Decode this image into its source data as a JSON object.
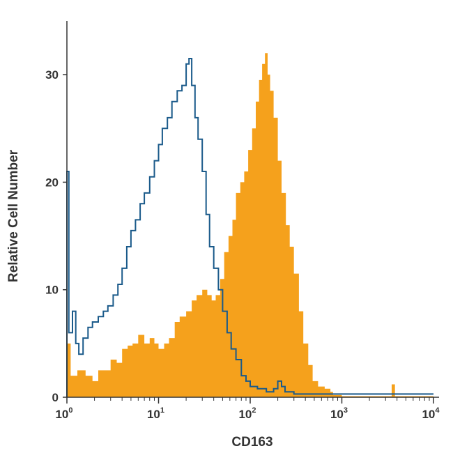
{
  "chart_data": {
    "type": "area",
    "xlabel": "CD163",
    "ylabel": "Relative Cell Number",
    "x_scale": "log",
    "xlim": [
      1,
      10000
    ],
    "ylim": [
      0,
      35
    ],
    "y_ticks": [
      0,
      10,
      20,
      30
    ],
    "x_ticks": [
      {
        "base": "10",
        "exp": "0",
        "value": 1
      },
      {
        "base": "10",
        "exp": "1",
        "value": 10
      },
      {
        "base": "10",
        "exp": "2",
        "value": 100
      },
      {
        "base": "10",
        "exp": "3",
        "value": 1000
      },
      {
        "base": "10",
        "exp": "4",
        "value": 10000
      }
    ],
    "grid": false,
    "legend": "none",
    "series": [
      {
        "style": "filled",
        "color": "#f5a11c",
        "points": [
          [
            1.0,
            5
          ],
          [
            1.1,
            2
          ],
          [
            1.3,
            2.5
          ],
          [
            1.6,
            2
          ],
          [
            1.9,
            1.5
          ],
          [
            2.2,
            2.5
          ],
          [
            2.6,
            2.5
          ],
          [
            3.0,
            3.5
          ],
          [
            3.5,
            3.2
          ],
          [
            4.0,
            4.5
          ],
          [
            4.6,
            4.8
          ],
          [
            5.2,
            5
          ],
          [
            6.0,
            5.8
          ],
          [
            7.0,
            5
          ],
          [
            8.0,
            5.5
          ],
          [
            9.0,
            5
          ],
          [
            10.0,
            4.5
          ],
          [
            11.5,
            5
          ],
          [
            13.0,
            5.5
          ],
          [
            15.0,
            7
          ],
          [
            17.0,
            7.5
          ],
          [
            20.0,
            8
          ],
          [
            23.0,
            9
          ],
          [
            26.0,
            9.5
          ],
          [
            30.0,
            10
          ],
          [
            34.0,
            9.5
          ],
          [
            38.0,
            9
          ],
          [
            42.0,
            9.5
          ],
          [
            47.0,
            11
          ],
          [
            52.0,
            13.5
          ],
          [
            58.0,
            15
          ],
          [
            64.0,
            16.5
          ],
          [
            70.0,
            19
          ],
          [
            78.0,
            20
          ],
          [
            86.0,
            21
          ],
          [
            95.0,
            23
          ],
          [
            105.0,
            25
          ],
          [
            115.0,
            27.5
          ],
          [
            125.0,
            29.5
          ],
          [
            135.0,
            31
          ],
          [
            145.0,
            32
          ],
          [
            155.0,
            30
          ],
          [
            165.0,
            28.5
          ],
          [
            180.0,
            26
          ],
          [
            200.0,
            22
          ],
          [
            220.0,
            19
          ],
          [
            245.0,
            16
          ],
          [
            270.0,
            14
          ],
          [
            300.0,
            11.5
          ],
          [
            340.0,
            8
          ],
          [
            380.0,
            5
          ],
          [
            430.0,
            3
          ],
          [
            480.0,
            1.5
          ],
          [
            550.0,
            1
          ],
          [
            650.0,
            0.8
          ],
          [
            750.0,
            0.5
          ],
          [
            800.0,
            0.2
          ],
          [
            1000.0,
            0.1
          ],
          [
            3200.0,
            0.1
          ],
          [
            3500.0,
            1.2
          ],
          [
            3800.0,
            0.1
          ],
          [
            10000.0,
            0.1
          ]
        ]
      },
      {
        "style": "outline",
        "color": "#1a5a8a",
        "points": [
          [
            1.0,
            21
          ],
          [
            1.05,
            6
          ],
          [
            1.15,
            8
          ],
          [
            1.25,
            5
          ],
          [
            1.35,
            4
          ],
          [
            1.5,
            5.5
          ],
          [
            1.7,
            6.5
          ],
          [
            1.9,
            7
          ],
          [
            2.2,
            7.5
          ],
          [
            2.5,
            8
          ],
          [
            2.8,
            8.5
          ],
          [
            3.2,
            9.5
          ],
          [
            3.6,
            10.5
          ],
          [
            4.0,
            12
          ],
          [
            4.5,
            14
          ],
          [
            5.0,
            15.5
          ],
          [
            5.6,
            16.5
          ],
          [
            6.3,
            18
          ],
          [
            7.0,
            19
          ],
          [
            8.0,
            20.5
          ],
          [
            9.0,
            22
          ],
          [
            10.0,
            23.5
          ],
          [
            11.0,
            25
          ],
          [
            12.5,
            26
          ],
          [
            14.0,
            27.5
          ],
          [
            16.0,
            28.5
          ],
          [
            18.0,
            29
          ],
          [
            20.0,
            31
          ],
          [
            21.5,
            31.5
          ],
          [
            23.0,
            29
          ],
          [
            25.0,
            26
          ],
          [
            27.0,
            24
          ],
          [
            30.0,
            21
          ],
          [
            33.0,
            17
          ],
          [
            36.0,
            14
          ],
          [
            40.0,
            12
          ],
          [
            45.0,
            10
          ],
          [
            50.0,
            8
          ],
          [
            56.0,
            6
          ],
          [
            62.0,
            4.5
          ],
          [
            70.0,
            3.5
          ],
          [
            80.0,
            2
          ],
          [
            90.0,
            1.5
          ],
          [
            100.0,
            1
          ],
          [
            120.0,
            0.8
          ],
          [
            150.0,
            0.5
          ],
          [
            180.0,
            0.8
          ],
          [
            200.0,
            1.5
          ],
          [
            220.0,
            1
          ],
          [
            240.0,
            0.5
          ],
          [
            300.0,
            0.3
          ],
          [
            500.0,
            0.3
          ],
          [
            1000.0,
            0.3
          ],
          [
            3000.0,
            0.3
          ],
          [
            10000.0,
            0.3
          ]
        ]
      }
    ]
  }
}
